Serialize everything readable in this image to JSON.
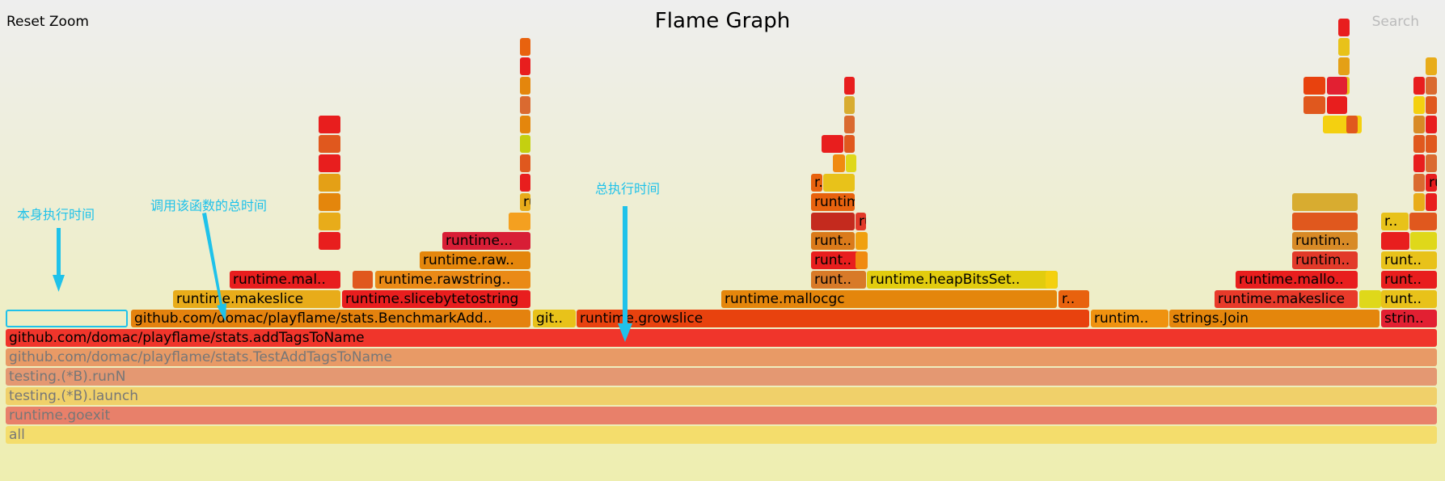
{
  "header": {
    "reset_label": "Reset Zoom",
    "title": "Flame Graph",
    "search_label": "Search"
  },
  "annotations": {
    "self_time": "本身执行时间",
    "call_total_time": "调用该函数的总时间",
    "total_time": "总执行时间"
  },
  "colors": {
    "annotation": "#1fc2ea"
  },
  "frames": [
    {
      "label": "all",
      "color": "#f4dd6c",
      "dim": true
    },
    {
      "label": "runtime.goexit",
      "color": "#e8806a",
      "dim": true
    },
    {
      "label": "testing.(*B).launch",
      "color": "#f0d06a",
      "dim": true
    },
    {
      "label": "testing.(*B).runN",
      "color": "#e49872",
      "dim": true
    },
    {
      "label": "github.com/domac/playflame/stats.TestAddTagsToName",
      "color": "#e89a66",
      "dim": true
    },
    {
      "label": "github.com/domac/playflame/stats.addTagsToName",
      "color": "#f0352b"
    },
    {
      "label": "",
      "color": "transparent",
      "selected": true
    },
    {
      "label": "github.com/domac/playflame/stats.BenchmarkAdd..",
      "color": "#e4820e"
    },
    {
      "label": "git..",
      "color": "#e8c21a"
    },
    {
      "label": "runtime.growslice",
      "color": "#e8420e"
    },
    {
      "label": "runtim..",
      "color": "#ef9210"
    },
    {
      "label": "strings.Join",
      "color": "#e4860c"
    },
    {
      "label": "strin..",
      "color": "#e22032"
    },
    {
      "label": "runtime.makeslice",
      "color": "#e8ac1a"
    },
    {
      "label": "runtime.slicebytetostring",
      "color": "#e81e1e"
    },
    {
      "label": "runtime.mallocgc",
      "color": "#e4860c"
    },
    {
      "label": "r..",
      "color": "#e8620e"
    },
    {
      "label": "runtime.makeslice",
      "color": "#e83a2a"
    },
    {
      "label": "",
      "color": "#dfd81a"
    },
    {
      "label": "runt..",
      "color": "#e8c21a"
    },
    {
      "label": "runtime.mal..",
      "color": "#e81e1e"
    },
    {
      "label": "",
      "color": "#e0581e"
    },
    {
      "label": "runtime.rawstring..",
      "color": "#ea8a16"
    },
    {
      "label": "runt..",
      "color": "#d87a28"
    },
    {
      "label": "runtime.heapBitsSet..",
      "color": "#e2cc0e"
    },
    {
      "label": "",
      "color": "#f4d010"
    },
    {
      "label": "runtime.mallo..",
      "color": "#e81e1e"
    },
    {
      "label": "runt..",
      "color": "#e81e1e"
    },
    {
      "label": "",
      "color": "#e0581e"
    },
    {
      "label": "runtime.raw..",
      "color": "#e4860c"
    },
    {
      "label": "runt..",
      "color": "#e81e1e"
    },
    {
      "label": "",
      "color": "#f08a10"
    },
    {
      "label": "runtim..",
      "color": "#e23a2a"
    },
    {
      "label": "runt..",
      "color": "#e8c21a"
    },
    {
      "label": "",
      "color": "#e81e1e"
    },
    {
      "label": "",
      "color": "#e8ac1a"
    },
    {
      "label": "",
      "color": "#e4860c"
    },
    {
      "label": "runtime...",
      "color": "#d81e36"
    },
    {
      "label": "",
      "color": "#f0a030"
    },
    {
      "label": "runt..",
      "color": "#da7a1a"
    },
    {
      "label": "",
      "color": "#f0a010"
    },
    {
      "label": "runtim..",
      "color": "#d88a26"
    },
    {
      "label": "",
      "color": "#e81e1e"
    },
    {
      "label": "",
      "color": "#dfd81a"
    },
    {
      "label": "r..",
      "color": "#e8c21a"
    },
    {
      "label": "",
      "color": "#e0581e"
    },
    {
      "label": "",
      "color": "#e4a016"
    },
    {
      "label": "",
      "color": "#e81e1e"
    },
    {
      "label": "",
      "color": "#e0581e"
    },
    {
      "label": "run..",
      "color": "#e8ac1a"
    },
    {
      "label": "",
      "color": "#c42a1e"
    },
    {
      "label": "runtim..",
      "color": "#e23a2a"
    },
    {
      "label": "",
      "color": "#e0581e"
    },
    {
      "label": "",
      "color": "#e8ac1a"
    },
    {
      "label": "",
      "color": "#e81e1e"
    },
    {
      "label": "",
      "color": "#da6a30"
    },
    {
      "label": "run..",
      "color": "#e81e1e"
    },
    {
      "label": "runtim..",
      "color": "#e8620e"
    },
    {
      "label": "",
      "color": "#d8ac30"
    },
    {
      "label": "r..",
      "color": "#e8620e"
    },
    {
      "label": "",
      "color": "#e8c21a"
    },
    {
      "label": "",
      "color": "#f08a10"
    },
    {
      "label": "",
      "color": "#dfd81a"
    },
    {
      "label": "",
      "color": "#e81e1e"
    },
    {
      "label": "",
      "color": "#da6a30"
    },
    {
      "label": "",
      "color": "#e0581e"
    },
    {
      "label": "",
      "color": "#d81e36"
    },
    {
      "label": "run..",
      "color": "#e23a2a"
    },
    {
      "label": "",
      "color": "#f4d010"
    },
    {
      "label": "",
      "color": "#e0581e"
    },
    {
      "label": "",
      "color": "#e81e1e"
    },
    {
      "label": "",
      "color": "#e81e1e"
    },
    {
      "label": "",
      "color": "#e0581e"
    },
    {
      "label": "",
      "color": "#da6a30"
    },
    {
      "label": "",
      "color": "#e0581e"
    },
    {
      "label": "",
      "color": "#e81e1e"
    },
    {
      "label": "",
      "color": "#e8c21a"
    },
    {
      "label": "",
      "color": "#e4a016"
    },
    {
      "label": "",
      "color": "#e81e1e"
    },
    {
      "label": "",
      "color": "#e0581e"
    },
    {
      "label": "",
      "color": "#e81e1e"
    },
    {
      "label": "",
      "color": "#e0581e"
    },
    {
      "label": "",
      "color": "#c4d010"
    },
    {
      "label": "",
      "color": "#f4a020"
    },
    {
      "label": "",
      "color": "#e4860c"
    },
    {
      "label": "",
      "color": "#da6a30"
    },
    {
      "label": "",
      "color": "#e4860c"
    },
    {
      "label": "",
      "color": "#e81e1e"
    },
    {
      "label": "",
      "color": "#e8620e"
    },
    {
      "label": "",
      "color": "#d8ac30"
    },
    {
      "label": "",
      "color": "#e81e1e"
    },
    {
      "label": "",
      "color": "#e8420e"
    },
    {
      "label": "",
      "color": "#e22032"
    },
    {
      "label": "",
      "color": "#e8c21a"
    },
    {
      "label": "",
      "color": "#e81e1e"
    },
    {
      "label": "",
      "color": "#da6a30"
    },
    {
      "label": "",
      "color": "#e8ac1a"
    },
    {
      "label": "",
      "color": "#d88a26"
    },
    {
      "label": "",
      "color": "#f4d010"
    },
    {
      "label": "",
      "color": "#e81e1e"
    },
    {
      "label": "",
      "color": "#e0581e"
    },
    {
      "label": "",
      "color": "#c4d010"
    }
  ]
}
